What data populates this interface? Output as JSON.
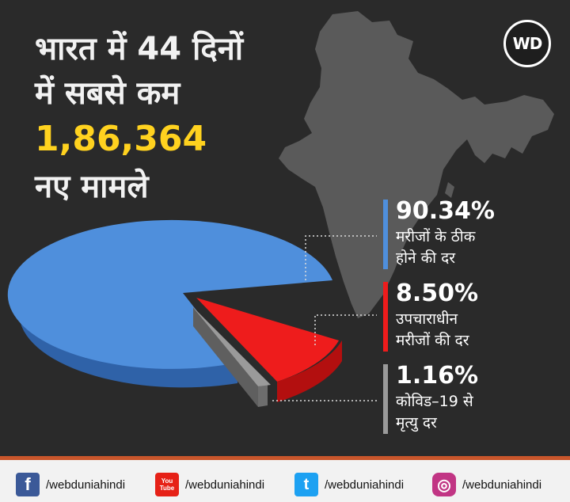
{
  "headline": {
    "line1": "भारत में 44 दिनों",
    "line2": "में सबसे कम",
    "number": "1,86,364",
    "line4": "नए मामले"
  },
  "logo_text": "WD",
  "chart_data": {
    "type": "pie",
    "slices": [
      {
        "value": 90.34,
        "label": "90.34%",
        "desc": [
          "मरीजों के ठीक",
          "होने की दर"
        ],
        "color": "#4f8fdc"
      },
      {
        "value": 8.5,
        "label": "8.50%",
        "desc": [
          "उपचाराधीन",
          "मरीजों की दर"
        ],
        "color": "#ee1c1c"
      },
      {
        "value": 1.16,
        "label": "1.16%",
        "desc": [
          "कोविड–19 से",
          "मृत्यु दर"
        ],
        "color": "#9a9a9a"
      }
    ]
  },
  "footer": {
    "items": [
      {
        "icon": "facebook-icon",
        "glyph": "f",
        "color": "#3b5998",
        "handle": "/webduniahindi"
      },
      {
        "icon": "youtube-icon",
        "glyph": "You Tube",
        "color": "#e62117",
        "handle": "/webduniahindi"
      },
      {
        "icon": "twitter-icon",
        "glyph": "t",
        "color": "#1da1f2",
        "handle": "/webduniahindi"
      },
      {
        "icon": "instagram-icon",
        "glyph": "◎",
        "color": "#c13584",
        "handle": "/webduniahindi"
      }
    ]
  },
  "colors": {
    "background": "#2a2a2a",
    "highlight": "#ffd21f",
    "footer_border": "#c9562b"
  }
}
